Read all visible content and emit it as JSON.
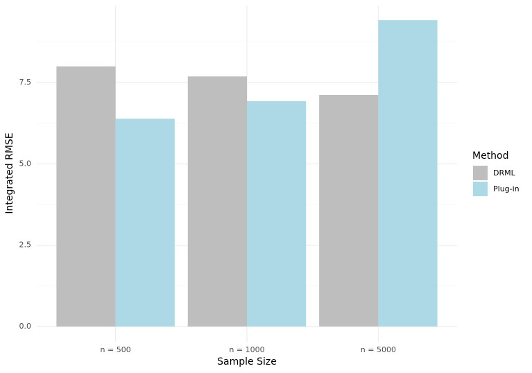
{
  "chart_data": {
    "type": "bar",
    "x_label": "Sample Size",
    "y_label": "Integrated RMSE",
    "categories": [
      "n = 500",
      "n = 1000",
      "n = 5000"
    ],
    "series": [
      {
        "name": "DRML",
        "color": "#bebebe",
        "values": [
          8.0,
          7.69,
          7.12
        ]
      },
      {
        "name": "Plug-in",
        "color": "#add8e6",
        "values": [
          6.39,
          6.93,
          9.42
        ]
      }
    ],
    "legend_title": "Method",
    "ylim": [
      -0.47,
      9.87
    ],
    "yticks": [
      {
        "value": 0,
        "label": "0.0"
      },
      2.5,
      {
        "value": 5,
        "label": "5.0"
      },
      7.5
    ],
    "grid": true,
    "legend": "right"
  }
}
